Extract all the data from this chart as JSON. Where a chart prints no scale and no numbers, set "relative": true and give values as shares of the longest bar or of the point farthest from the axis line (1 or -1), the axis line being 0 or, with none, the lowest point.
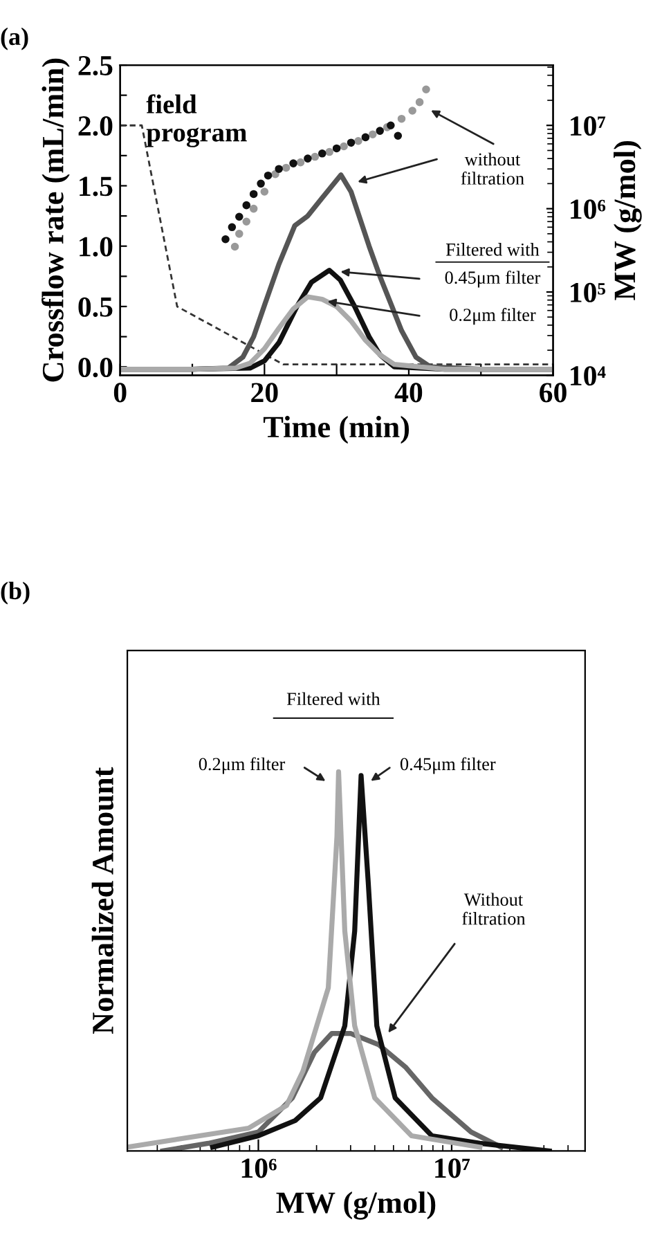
{
  "chart_data": [
    {
      "type": "line",
      "title": "(a)",
      "xlabel": "Time (min)",
      "ylabel": "Crossflow rate (mL/min)",
      "y2label": "MW (g/mol)",
      "xlim": [
        0,
        60
      ],
      "xticks": [
        0,
        {
          "value": 10,
          "label": null
        },
        20,
        {
          "value": 30,
          "label": null
        },
        40,
        {
          "value": 50,
          "label": null
        },
        60
      ],
      "ylim": [
        -0.07,
        2.5
      ],
      "yticks": [
        {
          "value": 0,
          "label": "0.0"
        },
        {
          "value": 0.25,
          "label": null
        },
        {
          "value": 0.5,
          "label": "0.5"
        },
        {
          "value": 0.75,
          "label": null
        },
        {
          "value": 1.0,
          "label": "1.0"
        },
        {
          "value": 1.25,
          "label": null
        },
        {
          "value": 1.5,
          "label": "1.5"
        },
        {
          "value": 1.75,
          "label": null
        },
        {
          "value": 2.0,
          "label": "2.0"
        },
        {
          "value": 2.25,
          "label": null
        },
        {
          "value": 2.5,
          "label": "2.5"
        }
      ],
      "log": "y2",
      "y2lim": [
        10000,
        53000000
      ],
      "y2ticks": [
        {
          "value": 10000,
          "label": "10⁴"
        },
        {
          "value": 100000,
          "label": "10⁵"
        },
        {
          "value": 1000000,
          "label": "10⁶"
        },
        {
          "value": 10000000,
          "label": "10⁷"
        }
      ],
      "grid": false,
      "legend": false,
      "series": [
        {
          "line_style": "dashed",
          "color": "#333333",
          "x": [
            0,
            3,
            7.9,
            22.6,
            60
          ],
          "values": [
            2.0,
            2.0,
            0.5,
            0.02,
            0.02
          ]
        },
        {
          "color": "#555555",
          "x": [
            0,
            10,
            15,
            17,
            18.5,
            20,
            22,
            24.2,
            26,
            28,
            30.6,
            32,
            34.5,
            36,
            37.6,
            39,
            41,
            43,
            50,
            60
          ],
          "values": [
            -0.02,
            -0.02,
            -0.01,
            0.08,
            0.25,
            0.51,
            0.85,
            1.17,
            1.25,
            1.4,
            1.59,
            1.45,
            1.0,
            0.75,
            0.51,
            0.3,
            0.08,
            0.0,
            -0.02,
            -0.02
          ]
        },
        {
          "color": "#111111",
          "x": [
            0,
            10,
            18,
            20,
            22,
            24.5,
            26.5,
            29,
            30.5,
            32.5,
            34.5,
            36,
            38,
            45,
            60
          ],
          "values": [
            -0.02,
            -0.02,
            -0.01,
            0.05,
            0.2,
            0.5,
            0.7,
            0.8,
            0.72,
            0.5,
            0.25,
            0.1,
            0.0,
            -0.02,
            -0.02
          ]
        },
        {
          "color": "#aaaaaa",
          "x": [
            0,
            10,
            16,
            18,
            20,
            22,
            24,
            26,
            28,
            30,
            32,
            34,
            36,
            38,
            45,
            60
          ],
          "values": [
            -0.02,
            -0.02,
            -0.01,
            0.03,
            0.15,
            0.32,
            0.48,
            0.58,
            0.56,
            0.5,
            0.38,
            0.22,
            0.1,
            0.02,
            -0.02,
            -0.02
          ]
        },
        {
          "type": "scatter",
          "axis": "y2",
          "marker": "circle",
          "color": "#999999",
          "x": [
            15.9,
            16.5,
            17.5,
            18.5,
            20,
            21.5,
            23,
            25,
            27,
            29,
            31,
            33,
            35,
            37,
            39,
            40.5,
            41.5,
            42.4
          ],
          "values": [
            350000,
            500000,
            700000,
            1000000,
            1600000,
            2600000,
            3100000,
            3600000,
            4200000,
            4800000,
            5600000,
            6500000,
            7800000,
            9500000,
            12000000,
            15000000,
            19000000,
            27000000
          ]
        },
        {
          "type": "scatter",
          "axis": "y2",
          "marker": "circle",
          "color": "#111111",
          "x": [
            14.6,
            15.5,
            16.5,
            17.5,
            18.5,
            19.5,
            20.5,
            22,
            24,
            26,
            28,
            30,
            32,
            34,
            36,
            37.5,
            38.5
          ],
          "values": [
            430000,
            600000,
            800000,
            1100000,
            1500000,
            2000000,
            2500000,
            3000000,
            3500000,
            4000000,
            4600000,
            5300000,
            6200000,
            7200000,
            8600000,
            10000000,
            7500000
          ]
        }
      ],
      "annotations": [
        "field program",
        "Filtered with",
        "without\nfiltration",
        "0.45μm filter",
        "0.2μm filter"
      ]
    },
    {
      "type": "line",
      "title": "(b)",
      "xlabel": "MW (g/mol)",
      "ylabel": "Normalized Amount",
      "relative": true,
      "log": "x",
      "xlim": [
        210000,
        49000000
      ],
      "xticks": [
        {
          "value": 1000000,
          "label": "10⁶"
        },
        {
          "value": 10000000,
          "label": "10⁷"
        }
      ],
      "tick_labels": "x",
      "grid": false,
      "legend": false,
      "series": [
        {
          "color": "#666666",
          "x": [
            320000,
            550000,
            1000000,
            1500000,
            1950000,
            2400000,
            3000000,
            4200000,
            5800000,
            7900000,
            12600000,
            18000000
          ],
          "values": [
            0,
            0.02,
            0.05,
            0.14,
            0.26,
            0.31,
            0.31,
            0.28,
            0.22,
            0.14,
            0.05,
            0.01
          ]
        },
        {
          "color": "#111111",
          "x": [
            580000,
            1000000,
            1550000,
            2100000,
            2800000,
            3150000,
            3400000,
            3700000,
            4100000,
            5100000,
            7900000,
            14000000,
            32000000
          ],
          "values": [
            0.01,
            0.04,
            0.08,
            0.14,
            0.33,
            0.58,
            0.99,
            0.71,
            0.33,
            0.14,
            0.04,
            0.02,
            0
          ]
        },
        {
          "color": "#aaaaaa",
          "x": [
            210000,
            890000,
            1400000,
            1700000,
            2300000,
            2550000,
            2600000,
            2800000,
            3150000,
            4000000,
            6200000,
            14000000
          ],
          "values": [
            0.01,
            0.06,
            0.12,
            0.21,
            0.43,
            0.83,
            1.0,
            0.58,
            0.33,
            0.14,
            0.04,
            0.01
          ]
        }
      ],
      "annotations": [
        "Filtered with",
        "0.2μm filter",
        "0.45μm filter",
        "Without\nfiltration"
      ]
    }
  ]
}
